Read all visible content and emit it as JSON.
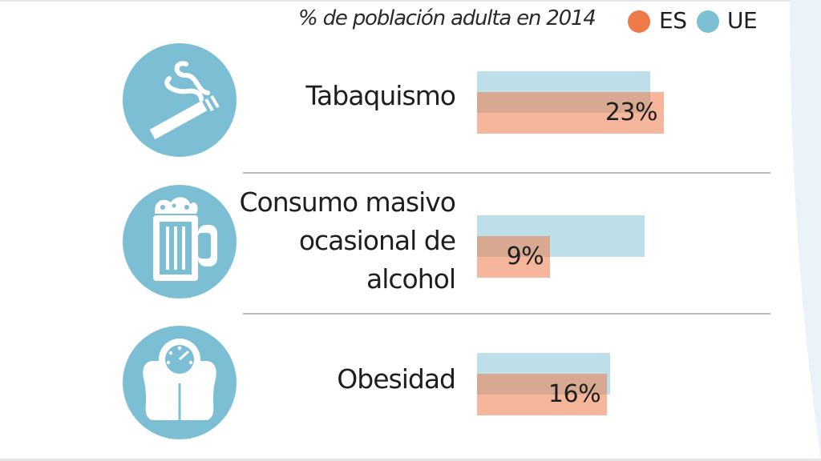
{
  "legend": {
    "title": "% de población adulta en 2014",
    "items": [
      {
        "key": "es",
        "label": "ES",
        "color": "#ee7a48"
      },
      {
        "key": "eu",
        "label": "UE",
        "color": "#7bbfd3"
      }
    ]
  },
  "colors": {
    "icon_bg": "#7cbfd4",
    "background_arc": "#eaf4f8"
  },
  "chart_data": {
    "type": "bar",
    "orientation": "horizontal",
    "title": "% de población adulta en 2014",
    "categories": [
      "Tabaquismo",
      "Consumo masivo ocasional de alcohol",
      "Obesidad"
    ],
    "category_lines": [
      [
        "Tabaquismo"
      ],
      [
        "Consumo masivo",
        "ocasional de",
        "alcohol"
      ],
      [
        "Obesidad"
      ]
    ],
    "icons": [
      "cigarette-icon",
      "beer-mug-icon",
      "weighing-scale-icon"
    ],
    "series": [
      {
        "name": "ES",
        "values": [
          23,
          9,
          16
        ]
      },
      {
        "name": "UE",
        "values": [
          21.3,
          20.6,
          16.4
        ]
      }
    ],
    "value_labels": [
      "23%",
      "9%",
      "16%"
    ],
    "xlim": [
      0,
      23
    ],
    "grid": false,
    "legend": "top-right"
  }
}
